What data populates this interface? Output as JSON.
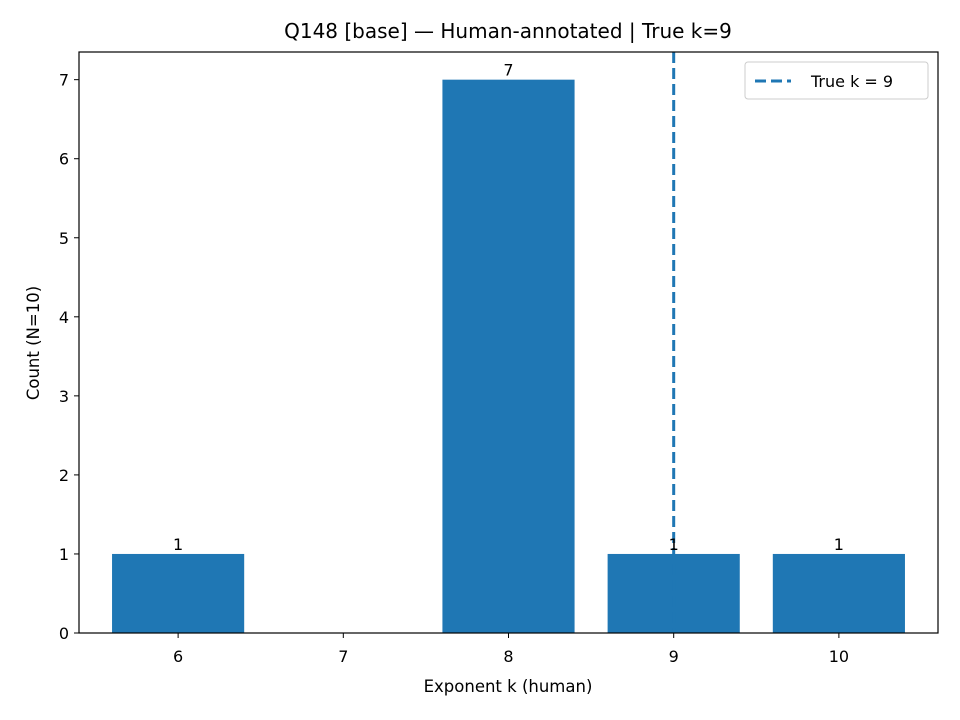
{
  "chart_data": {
    "type": "bar",
    "title": "Q148 [base] — Human-annotated | True k=9",
    "xlabel": "Exponent k (human)",
    "ylabel": "Count (N=10)",
    "categories": [
      "6",
      "7",
      "8",
      "9",
      "10"
    ],
    "x": [
      6,
      7,
      8,
      9,
      10
    ],
    "values": [
      1,
      0,
      7,
      1,
      1
    ],
    "bar_labels": [
      "1",
      "",
      "7",
      "1",
      "1"
    ],
    "xlim": [
      5.4,
      10.6
    ],
    "ylim": [
      0,
      7.35
    ],
    "yticks": [
      0,
      1,
      2,
      3,
      4,
      5,
      6,
      7
    ],
    "bar_color": "#1f77b4",
    "reference_line": {
      "x": 9,
      "style": "dashed",
      "color": "#1f77b4",
      "label": "True k = 9"
    },
    "legend": {
      "position": "top-right",
      "entries": [
        "True k = 9"
      ]
    },
    "grid": false
  }
}
